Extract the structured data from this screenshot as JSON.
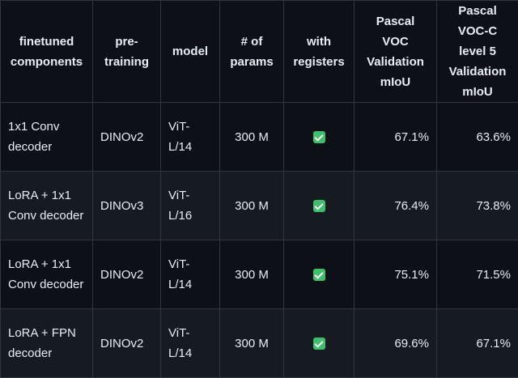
{
  "table": {
    "headers": [
      "finetuned components",
      "pre-training",
      "model",
      "# of params",
      "with registers",
      "Pascal VOC Validation mIoU",
      "Pascal VOC-C level 5 Validation mIoU"
    ],
    "rows": [
      {
        "components": "1x1 Conv decoder",
        "pretraining": "DINOv2",
        "model": "ViT-L/14",
        "params": "300 M",
        "registers": "check-icon",
        "voc": "67.1%",
        "vocc": "63.6%"
      },
      {
        "components": "LoRA + 1x1 Conv decoder",
        "pretraining": "DINOv3",
        "model": "ViT-L/16",
        "params": "300 M",
        "registers": "check-icon",
        "voc": "76.4%",
        "vocc": "73.8%"
      },
      {
        "components": "LoRA + 1x1 Conv decoder",
        "pretraining": "DINOv2",
        "model": "ViT-L/14",
        "params": "300 M",
        "registers": "check-icon",
        "voc": "75.1%",
        "vocc": "71.5%"
      },
      {
        "components": "LoRA + FPN decoder",
        "pretraining": "DINOv2",
        "model": "ViT-L/14",
        "params": "300 M",
        "registers": "check-icon",
        "voc": "69.6%",
        "vocc": "67.1%"
      }
    ]
  },
  "colors": {
    "background": "#0d1117",
    "row_alt": "#161b22",
    "border": "#30363d",
    "text": "#e6edf3",
    "check": "#3ebf6a"
  }
}
